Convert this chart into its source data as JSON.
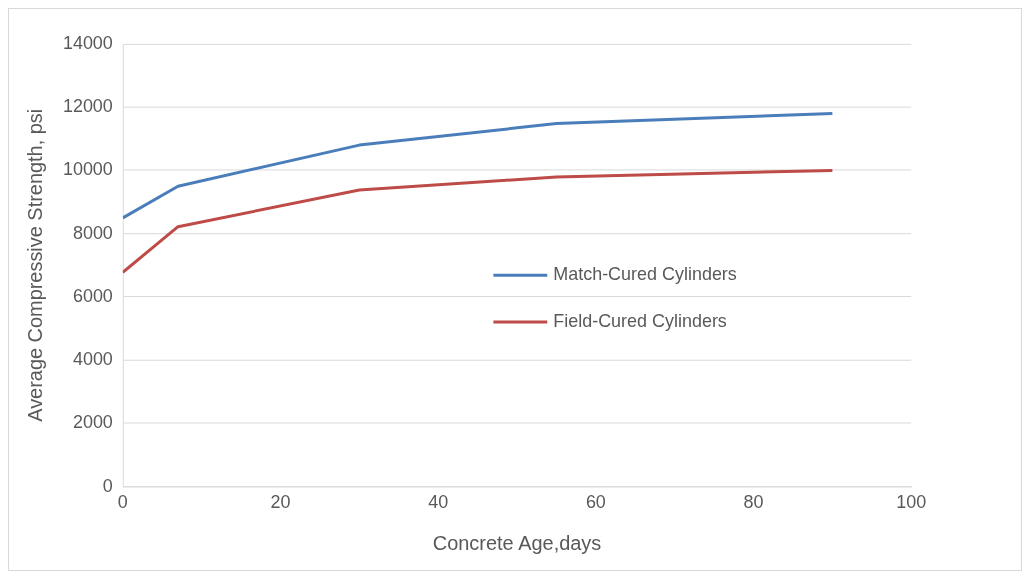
{
  "chart_data": {
    "type": "line",
    "xlabel": "Concrete Age,days",
    "ylabel": "Average Compressive Strength, psi",
    "x": [
      0,
      7,
      30,
      55,
      90
    ],
    "series": [
      {
        "name": "Match-Cured Cylinders",
        "color": "#4a7ebb",
        "values": [
          8500,
          9500,
          10800,
          11480,
          11800
        ]
      },
      {
        "name": "Field-Cured Cylinders",
        "color": "#be4b48",
        "values": [
          6780,
          8220,
          9380,
          9790,
          10000
        ]
      }
    ],
    "xlim": [
      0,
      100
    ],
    "xticks": [
      0,
      20,
      40,
      60,
      80,
      100
    ],
    "ylim": [
      0,
      14000
    ],
    "yticks": [
      0,
      2000,
      4000,
      6000,
      8000,
      10000,
      12000,
      14000
    ],
    "grid": "y",
    "legend": "right",
    "marker": "none",
    "line_style": "solid"
  }
}
